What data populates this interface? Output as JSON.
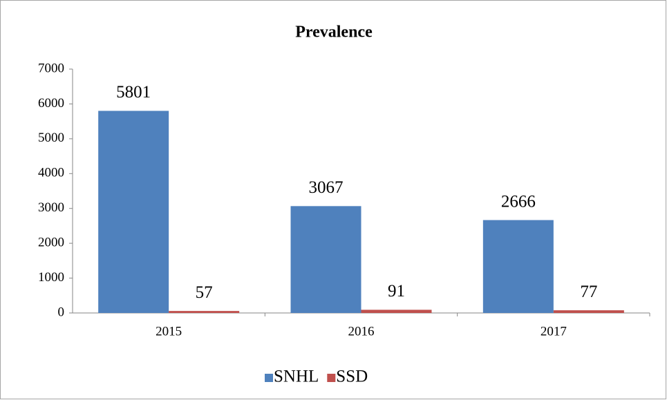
{
  "chart_data": {
    "type": "bar",
    "title": "Prevalence",
    "categories": [
      "2015",
      "2016",
      "2017"
    ],
    "series": [
      {
        "name": "SNHL",
        "color": "#4f81bd",
        "values": [
          5801,
          3067,
          2666
        ]
      },
      {
        "name": "SSD",
        "color": "#c0504d",
        "values": [
          57,
          91,
          77
        ]
      }
    ],
    "ylim": [
      0,
      7000
    ],
    "yticks": [
      0,
      1000,
      2000,
      3000,
      4000,
      5000,
      6000,
      7000
    ],
    "grid": false,
    "legend": "bottom"
  }
}
